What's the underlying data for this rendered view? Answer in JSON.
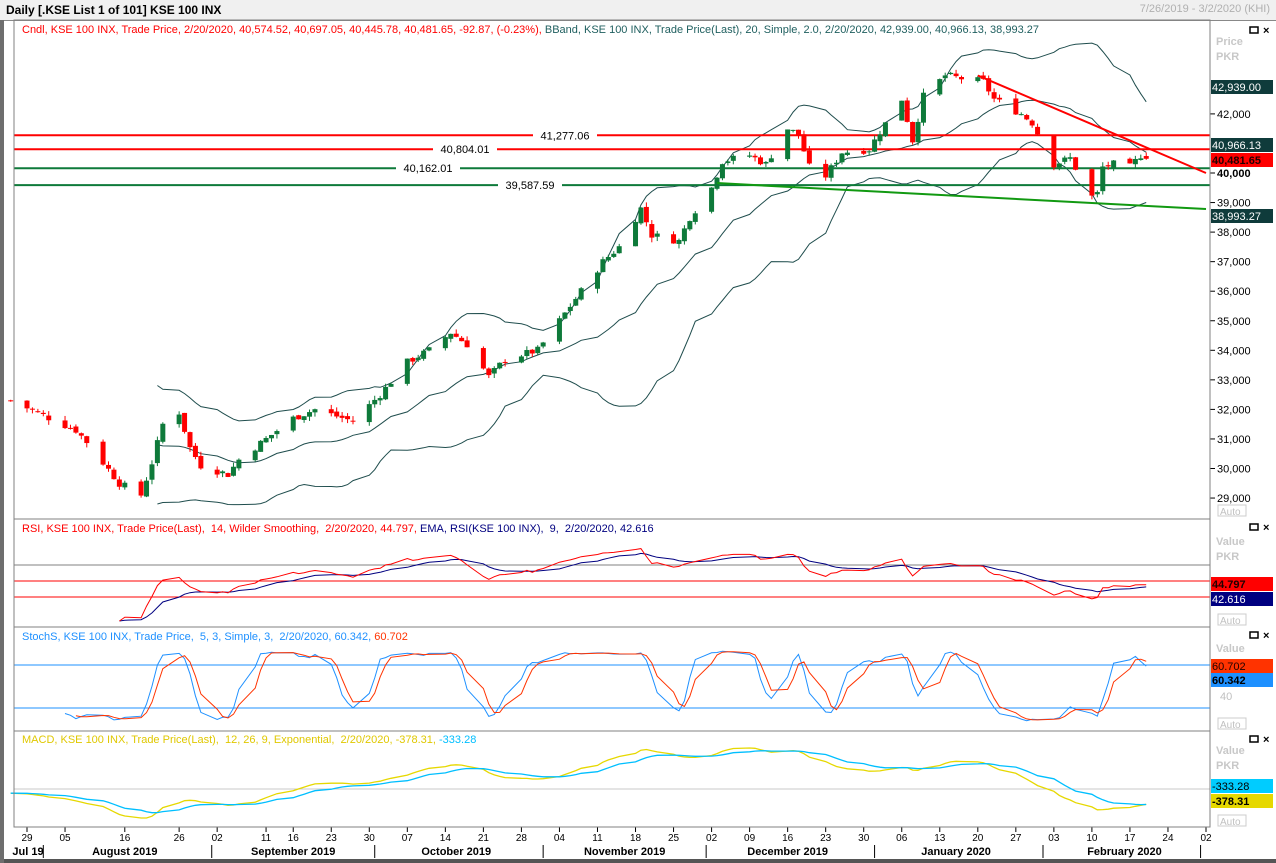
{
  "window": {
    "title": "Daily [.KSE List 1 of 101] KSE 100 INX",
    "date_range": "7/26/2019 - 3/2/2020 (KHI)"
  },
  "panels": {
    "price": {
      "legend_candle": "Cndl, KSE 100 INX, Trade Price, 2/20/2020, 40,574.52, 40,697.05, 40,445.78, 40,481.65, -92.87, (-0.23%),",
      "legend_bband": " BBand, KSE 100 INX, Trade Price(Last), 20, Simple, 2.0, 2/20/2020, 42,939.00, 40,966.13, 38,993.27",
      "axis_title": "Price",
      "axis_unit": "PKR",
      "axis_ticks": [
        "29,000",
        "30,000",
        "31,000",
        "32,000",
        "33,000",
        "34,000",
        "35,000",
        "36,000",
        "37,000",
        "38,000",
        "39,000",
        "40,000",
        "42,000"
      ],
      "badges": {
        "bb_upper": "42,939.00",
        "bb_mid": "40,966.13",
        "last": "40,481.65",
        "bb_lower": "38,993.27"
      },
      "auto_label": "Auto"
    },
    "rsi": {
      "legend_rsi": "RSI, KSE 100 INX, Trade Price(Last),  14, Wilder Smoothing,  2/20/2020, 44.797,",
      "legend_ema": " EMA, RSI(KSE 100 INX),  9,  2/20/2020, 42.616",
      "axis_title": "Value",
      "axis_unit": "PKR",
      "badge_rsi": "44.797",
      "badge_ema": "42.616",
      "auto_label": "Auto"
    },
    "stoch": {
      "legend_k": "StochS, KSE 100 INX, Trade Price,  5, 3, Simple, 3,  2/20/2020, 60.342,",
      "legend_d": " 60.702",
      "axis_title": "Value",
      "axis_tick": "40",
      "badge_d": "60.702",
      "badge_k": "60.342",
      "auto_label": "Auto"
    },
    "macd": {
      "legend_macd": "MACD, KSE 100 INX, Trade Price(Last),  12, 26, 9, Exponential,  2/20/2020, -378.31,",
      "legend_signal": " -333.28",
      "axis_title": "Value",
      "axis_unit": "PKR",
      "badge_signal": "-333.28",
      "badge_macd": "-378.31",
      "auto_label": "Auto"
    }
  },
  "colors": {
    "up": "#0e7a3a",
    "down": "#ff0000",
    "band": "#1f4d4d",
    "rsi": "#ff0000",
    "rsi_ema": "#000080",
    "stoch_k": "#1e90ff",
    "stoch_d": "#ff3300",
    "macd": "#e6d800",
    "signal": "#00bfff",
    "badge_dark": "#0f3b3b"
  },
  "x_axis": {
    "ticks": [
      [
        "2019-07-29",
        "29"
      ],
      [
        "2019-08-05",
        "05"
      ],
      [
        "2019-08-16",
        "16"
      ],
      [
        "2019-08-26",
        "26"
      ],
      [
        "2019-09-02",
        "02"
      ],
      [
        "2019-09-11",
        "11"
      ],
      [
        "2019-09-16",
        "16"
      ],
      [
        "2019-09-23",
        "23"
      ],
      [
        "2019-09-30",
        "30"
      ],
      [
        "2019-10-07",
        "07"
      ],
      [
        "2019-10-14",
        "14"
      ],
      [
        "2019-10-21",
        "21"
      ],
      [
        "2019-10-28",
        "28"
      ],
      [
        "2019-11-04",
        "04"
      ],
      [
        "2019-11-11",
        "11"
      ],
      [
        "2019-11-18",
        "18"
      ],
      [
        "2019-11-25",
        "25"
      ],
      [
        "2019-12-02",
        "02"
      ],
      [
        "2019-12-09",
        "09"
      ],
      [
        "2019-12-16",
        "16"
      ],
      [
        "2019-12-23",
        "23"
      ],
      [
        "2019-12-30",
        "30"
      ],
      [
        "2020-01-06",
        "06"
      ],
      [
        "2020-01-13",
        "13"
      ],
      [
        "2020-01-20",
        "20"
      ],
      [
        "2020-01-27",
        "27"
      ],
      [
        "2020-02-03",
        "03"
      ],
      [
        "2020-02-10",
        "10"
      ],
      [
        "2020-02-17",
        "17"
      ],
      [
        "2020-02-24",
        "24"
      ],
      [
        "2020-03-02",
        "02"
      ]
    ],
    "months": [
      [
        "2019-07-27",
        "Jul 19"
      ],
      [
        "2019-08-16",
        "August 2019"
      ],
      [
        "2019-09-16",
        "September 2019"
      ],
      [
        "2019-10-16",
        "October 2019"
      ],
      [
        "2019-11-16",
        "November 2019"
      ],
      [
        "2019-12-16",
        "December 2019"
      ],
      [
        "2020-01-16",
        "January 2020"
      ],
      [
        "2020-02-16",
        "February 2020"
      ]
    ],
    "month_starts": [
      "2019-08-01",
      "2019-09-01",
      "2019-10-01",
      "2019-11-01",
      "2019-12-01",
      "2020-01-01",
      "2020-02-01",
      "2020-03-01"
    ]
  },
  "chart_data": {
    "type": "candlestick",
    "ylim": [
      28500,
      43800
    ],
    "xlim": [
      "2019-07-26",
      "2020-03-02"
    ],
    "last_bar": {
      "date": "2020-02-20",
      "open": 40574.52,
      "high": 40697.05,
      "low": 40445.78,
      "close": 40481.65,
      "change": -92.87,
      "change_pct": -0.23
    },
    "close_waypoints": [
      [
        "2019-07-26",
        32300
      ],
      [
        "2019-08-01",
        31800
      ],
      [
        "2019-08-07",
        31300
      ],
      [
        "2019-08-09",
        30900
      ],
      [
        "2019-08-15",
        29500
      ],
      [
        "2019-08-19",
        29100
      ],
      [
        "2019-08-21",
        30200
      ],
      [
        "2019-08-23",
        31500
      ],
      [
        "2019-08-26",
        31900
      ],
      [
        "2019-08-28",
        30700
      ],
      [
        "2019-08-30",
        30100
      ],
      [
        "2019-09-04",
        29800
      ],
      [
        "2019-09-06",
        30300
      ],
      [
        "2019-09-11",
        31000
      ],
      [
        "2019-09-16",
        31700
      ],
      [
        "2019-09-20",
        32000
      ],
      [
        "2019-09-27",
        31600
      ],
      [
        "2019-10-02",
        32500
      ],
      [
        "2019-10-07",
        33600
      ],
      [
        "2019-10-11",
        34000
      ],
      [
        "2019-10-15",
        34600
      ],
      [
        "2019-10-18",
        34200
      ],
      [
        "2019-10-22",
        33100
      ],
      [
        "2019-10-25",
        33700
      ],
      [
        "2019-10-31",
        34000
      ],
      [
        "2019-11-04",
        35000
      ],
      [
        "2019-11-08",
        36000
      ],
      [
        "2019-11-12",
        37000
      ],
      [
        "2019-11-15",
        37500
      ],
      [
        "2019-11-19",
        38800
      ],
      [
        "2019-11-21",
        37900
      ],
      [
        "2019-11-26",
        37700
      ],
      [
        "2019-11-28",
        38500
      ],
      [
        "2019-12-02",
        39500
      ],
      [
        "2019-12-04",
        40400
      ],
      [
        "2019-12-09",
        40600
      ],
      [
        "2019-12-12",
        40300
      ],
      [
        "2019-12-16",
        41500
      ],
      [
        "2019-12-18",
        41300
      ],
      [
        "2019-12-20",
        40200
      ],
      [
        "2019-12-23",
        39900
      ],
      [
        "2019-12-26",
        40700
      ],
      [
        "2019-12-31",
        40800
      ],
      [
        "2020-01-02",
        41400
      ],
      [
        "2020-01-06",
        42500
      ],
      [
        "2020-01-08",
        41100
      ],
      [
        "2020-01-10",
        42600
      ],
      [
        "2020-01-14",
        43300
      ],
      [
        "2020-01-17",
        43200
      ],
      [
        "2020-01-21",
        43100
      ],
      [
        "2020-01-23",
        42500
      ],
      [
        "2020-01-28",
        42000
      ],
      [
        "2020-01-30",
        41700
      ],
      [
        "2020-02-03",
        40300
      ],
      [
        "2020-02-06",
        40500
      ],
      [
        "2020-02-10",
        39200
      ],
      [
        "2020-02-11",
        39300
      ],
      [
        "2020-02-12",
        40200
      ],
      [
        "2020-02-14",
        40300
      ],
      [
        "2020-02-17",
        40200
      ],
      [
        "2020-02-19",
        40600
      ],
      [
        "2020-02-20",
        40481.65
      ]
    ],
    "bollinger": {
      "period": 20,
      "stddev": 2.0,
      "upper": 42939.0,
      "middle": 40966.13,
      "lower": 38993.27
    },
    "levels": [
      {
        "value": 41277.06,
        "label": "41,277.06",
        "color": "#ff0000"
      },
      {
        "value": 40804.01,
        "label": "40,804.01",
        "color": "#ff0000"
      },
      {
        "value": 40162.01,
        "label": "40,162.01",
        "color": "#0e7a3a"
      },
      {
        "value": 39587.59,
        "label": "39,587.59",
        "color": "#0e7a3a"
      }
    ],
    "trendlines": [
      {
        "color": "#ff0000",
        "from": [
          "2020-01-20",
          43300
        ],
        "to": [
          "2020-03-02",
          40000
        ]
      },
      {
        "color": "#119911",
        "from": [
          "2019-12-03",
          39660
        ],
        "to": [
          "2020-03-02",
          38780
        ]
      }
    ],
    "rsi": {
      "period": 14,
      "ema": 9,
      "value": 44.797,
      "ema_value": 42.616,
      "levels": [
        70,
        50,
        30
      ]
    },
    "stochastic": {
      "k": 5,
      "d": 3,
      "smooth": 3,
      "k_value": 60.342,
      "d_value": 60.702,
      "levels": [
        80,
        20
      ]
    },
    "macd": {
      "fast": 12,
      "slow": 26,
      "signal": 9,
      "macd_value": -378.31,
      "signal_value": -333.28
    }
  }
}
